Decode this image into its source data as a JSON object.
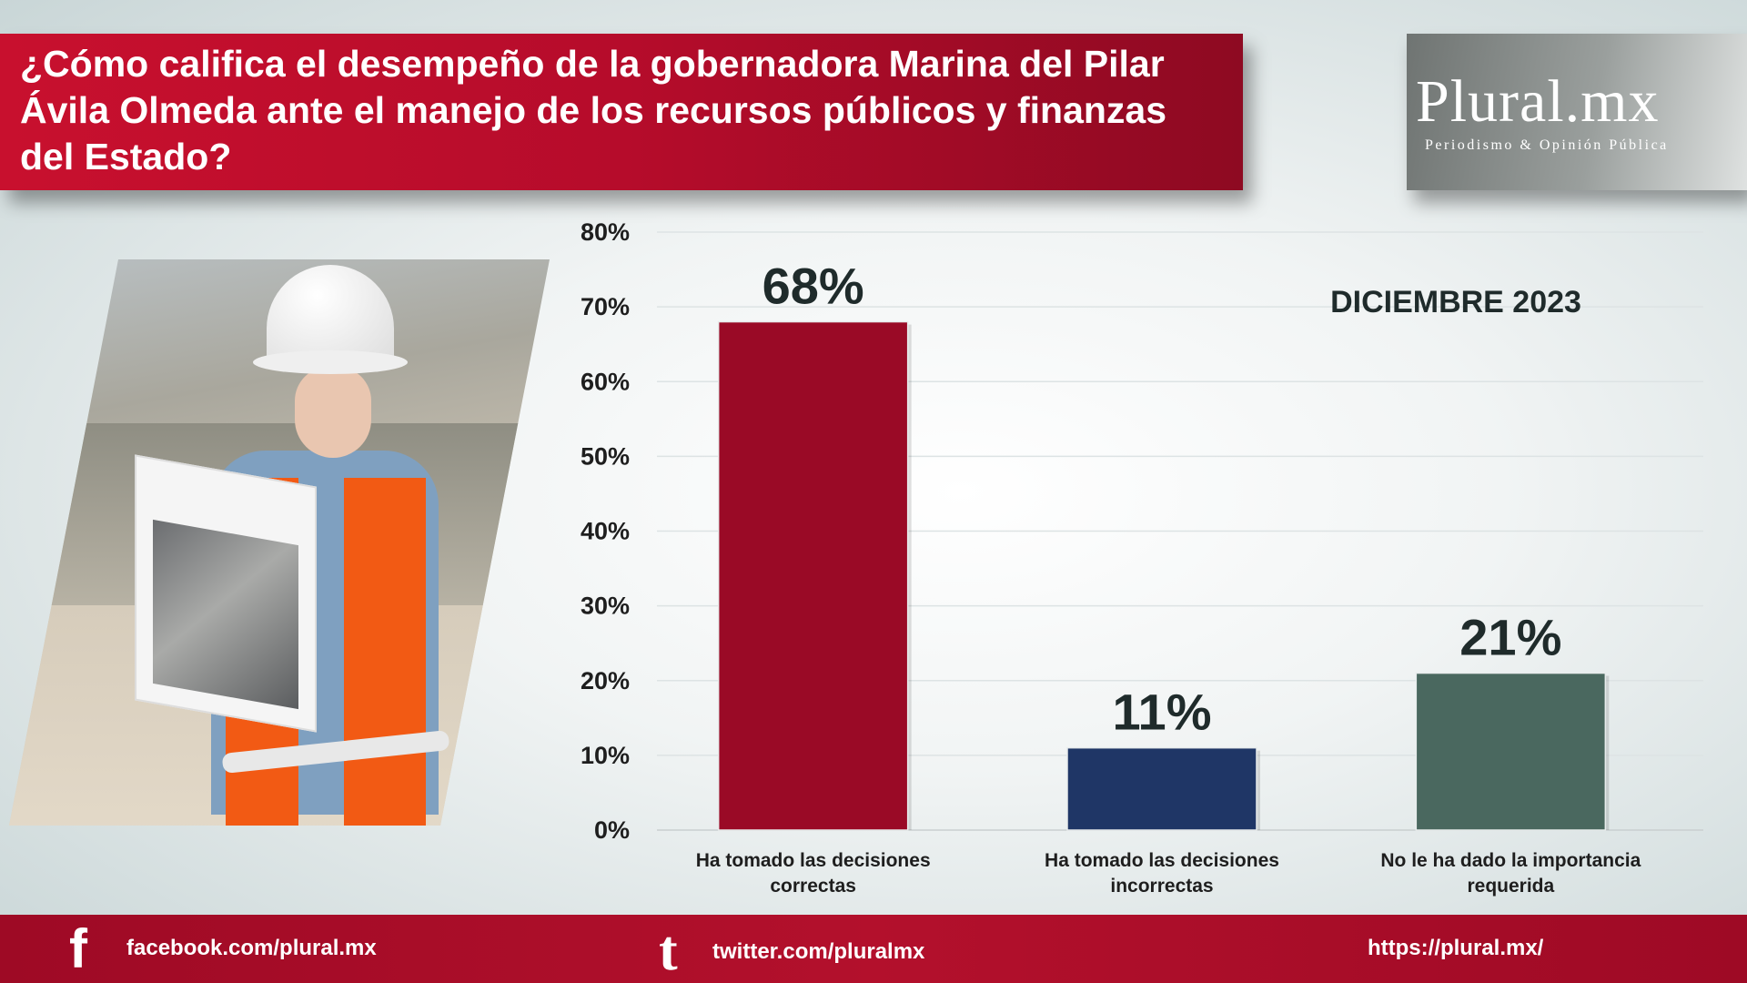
{
  "title": "¿Cómo califica el desempeño de la gobernadora Marina del Pilar Ávila Olmeda ante el manejo de los recursos públicos y finanzas del Estado?",
  "logo": {
    "name": "Plural.mx",
    "tagline": "Periodismo & Opinión Pública"
  },
  "date_label": "DICIEMBRE 2023",
  "chart_data": {
    "type": "bar",
    "categories": [
      [
        "Ha tomado las decisiones",
        "correctas"
      ],
      [
        "Ha tomado las decisiones",
        "incorrectas"
      ],
      [
        "No le ha dado la importancia",
        "requerida"
      ]
    ],
    "values": [
      68,
      11,
      21
    ],
    "data_labels": [
      "68%",
      "11%",
      "21%"
    ],
    "colors": [
      "#9a0a26",
      "#1f3666",
      "#4a685f"
    ],
    "ylim": [
      0,
      80
    ],
    "y_ticks": [
      "0%",
      "10%",
      "20%",
      "30%",
      "40%",
      "50%",
      "60%",
      "70%",
      "80%"
    ],
    "grid": true,
    "title": "",
    "xlabel": "",
    "ylabel": ""
  },
  "footer": {
    "facebook": "facebook.com/plural.mx",
    "twitter": "twitter.com/pluralmx",
    "website": "https://plural.mx/"
  }
}
